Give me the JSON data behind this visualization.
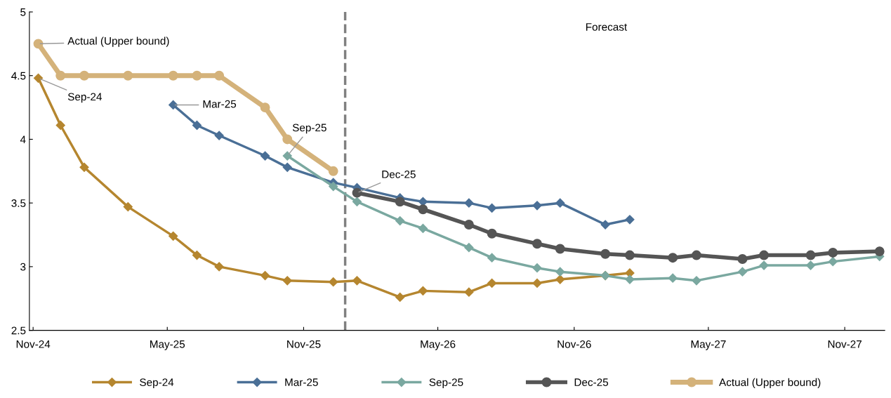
{
  "chart_data": {
    "type": "line",
    "xlim": [
      "2024-10-27",
      "2027-12-25"
    ],
    "ylim": [
      2.5,
      5
    ],
    "xticks": [
      {
        "value": "2024-11-01",
        "label": "Nov-24"
      },
      {
        "value": "2025-05-01",
        "label": "May-25"
      },
      {
        "value": "2025-11-01",
        "label": "Nov-25"
      },
      {
        "value": "2026-05-01",
        "label": "May-26"
      },
      {
        "value": "2026-11-01",
        "label": "Nov-26"
      },
      {
        "value": "2027-05-01",
        "label": "May-27"
      },
      {
        "value": "2027-11-01",
        "label": "Nov-27"
      }
    ],
    "yticks": [
      2.5,
      3,
      3.5,
      4,
      4.5,
      5
    ],
    "grid": false,
    "legend": "bottom",
    "line_style": "solid",
    "series": [
      {
        "name": "Sep-24",
        "color": "#b5862f",
        "marker": "diamond",
        "x": [
          "2024-11-08",
          "2024-12-08",
          "2025-01-09",
          "2025-03-09",
          "2025-05-09",
          "2025-06-10",
          "2025-07-10",
          "2025-09-10",
          "2025-10-10",
          "2025-12-11",
          "2026-01-12",
          "2026-03-11",
          "2026-04-11",
          "2026-06-12",
          "2026-07-13",
          "2026-09-12",
          "2026-10-13",
          "2026-12-13",
          "2027-01-15"
        ],
        "values": [
          4.48,
          4.11,
          3.78,
          3.47,
          3.24,
          3.09,
          3.0,
          2.93,
          2.89,
          2.88,
          2.89,
          2.76,
          2.81,
          2.8,
          2.87,
          2.87,
          2.9,
          2.93,
          2.95
        ]
      },
      {
        "name": "Mar-25",
        "color": "#4a6f96",
        "marker": "diamond",
        "x": [
          "2025-05-09",
          "2025-06-10",
          "2025-07-10",
          "2025-09-10",
          "2025-10-10",
          "2025-12-11",
          "2026-01-12",
          "2026-03-11",
          "2026-04-11",
          "2026-06-12",
          "2026-07-13",
          "2026-09-12",
          "2026-10-13",
          "2026-12-13",
          "2027-01-15"
        ],
        "values": [
          4.27,
          4.11,
          4.03,
          3.87,
          3.78,
          3.66,
          3.62,
          3.54,
          3.51,
          3.5,
          3.46,
          3.48,
          3.5,
          3.33,
          3.37
        ]
      },
      {
        "name": "Sep-25",
        "color": "#7aa8a0",
        "marker": "diamond",
        "x": [
          "2025-10-10",
          "2025-12-11",
          "2026-01-12",
          "2026-03-11",
          "2026-04-11",
          "2026-06-12",
          "2026-07-13",
          "2026-09-12",
          "2026-10-13",
          "2026-12-13",
          "2027-01-15",
          "2027-03-14",
          "2027-04-15",
          "2027-06-16",
          "2027-07-15",
          "2027-09-16",
          "2027-10-16",
          "2027-12-18"
        ],
        "values": [
          3.87,
          3.63,
          3.51,
          3.36,
          3.3,
          3.15,
          3.07,
          2.99,
          2.96,
          2.93,
          2.9,
          2.91,
          2.89,
          2.96,
          3.01,
          3.01,
          3.04,
          3.08
        ]
      },
      {
        "name": "Dec-25",
        "color": "#555555",
        "marker": "circle",
        "x": [
          "2026-01-12",
          "2026-03-11",
          "2026-04-11",
          "2026-06-12",
          "2026-07-13",
          "2026-09-12",
          "2026-10-13",
          "2026-12-13",
          "2027-01-15",
          "2027-03-14",
          "2027-04-15",
          "2027-06-16",
          "2027-07-15",
          "2027-09-16",
          "2027-10-16",
          "2027-12-18"
        ],
        "values": [
          3.58,
          3.51,
          3.45,
          3.33,
          3.26,
          3.18,
          3.14,
          3.1,
          3.09,
          3.07,
          3.09,
          3.06,
          3.09,
          3.09,
          3.11,
          3.12
        ]
      },
      {
        "name": "Actual (Upper bound)",
        "color": "#d4b27a",
        "marker": "circle",
        "x": [
          "2024-11-08",
          "2024-12-08",
          "2025-01-09",
          "2025-03-09",
          "2025-05-09",
          "2025-06-10",
          "2025-07-10",
          "2025-09-10",
          "2025-10-10",
          "2025-12-11"
        ],
        "values": [
          4.75,
          4.5,
          4.5,
          4.5,
          4.5,
          4.5,
          4.5,
          4.25,
          4.0,
          3.75
        ]
      }
    ],
    "ref_lines": [
      {
        "axis": "x",
        "value": "2025-12-27",
        "label": null,
        "color": "#808080",
        "line_style": "dashed"
      }
    ],
    "annotations": [
      {
        "text": "Actual (Upper bound)",
        "x": "2024-11-08",
        "y": 4.75
      },
      {
        "text": "Sep-24",
        "x": "2024-11-08",
        "y": 4.48
      },
      {
        "text": "Mar-25",
        "x": "2025-05-09",
        "y": 4.27
      },
      {
        "text": "Sep-25",
        "x": "2025-10-10",
        "y": 3.87
      },
      {
        "text": "Dec-25",
        "x": "2026-01-12",
        "y": 3.58
      },
      "Forecast"
    ]
  }
}
